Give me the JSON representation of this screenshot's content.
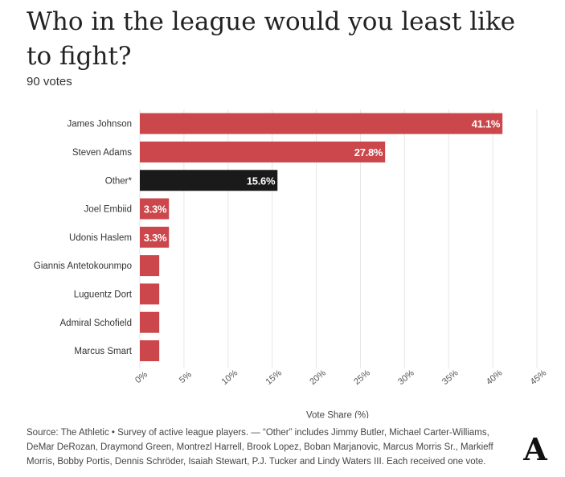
{
  "title": "Who in the league would you least like to fight?",
  "subtitle": "90 votes",
  "source": "Source: The Athletic • Survey of active league players. — “Other” includes Jimmy Butler, Michael Carter-Williams, DeMar DeRozan, Draymond Green, Montrezl Harrell, Brook Lopez, Boban Marjanovic, Marcus Morris Sr., Markieff Morris, Bobby Portis, Dennis Schröder, Isaiah Stewart, P.J. Tucker and Lindy Waters III. Each received one vote.",
  "logo_letter": "A",
  "colors": {
    "primary": "#cc474b",
    "other": "#1a1a1a",
    "grid": "#e6e6e6",
    "label_text": "#ffffff"
  },
  "chart_data": {
    "type": "bar",
    "orientation": "horizontal",
    "xlabel": "Vote Share (%)",
    "ylabel": "",
    "xlim": [
      0,
      45
    ],
    "xticks": [
      0,
      5,
      10,
      15,
      20,
      25,
      30,
      35,
      40,
      45
    ],
    "xtick_labels": [
      "0%",
      "5%",
      "10%",
      "15%",
      "20%",
      "25%",
      "30%",
      "35%",
      "40%",
      "45%"
    ],
    "categories": [
      "James Johnson",
      "Steven Adams",
      "Other*",
      "Joel Embiid",
      "Udonis Haslem",
      "Giannis Antetokounmpo",
      "Luguentz Dort",
      "Admiral Schofield",
      "Marcus Smart"
    ],
    "values": [
      41.1,
      27.8,
      15.6,
      3.3,
      3.3,
      2.2,
      2.2,
      2.2,
      2.2
    ],
    "data_labels": [
      "41.1%",
      "27.8%",
      "15.6%",
      "3.3%",
      "3.3%",
      "",
      "",
      "",
      ""
    ],
    "highlight": [
      "primary",
      "primary",
      "other",
      "primary",
      "primary",
      "primary",
      "primary",
      "primary",
      "primary"
    ],
    "grid": true
  }
}
